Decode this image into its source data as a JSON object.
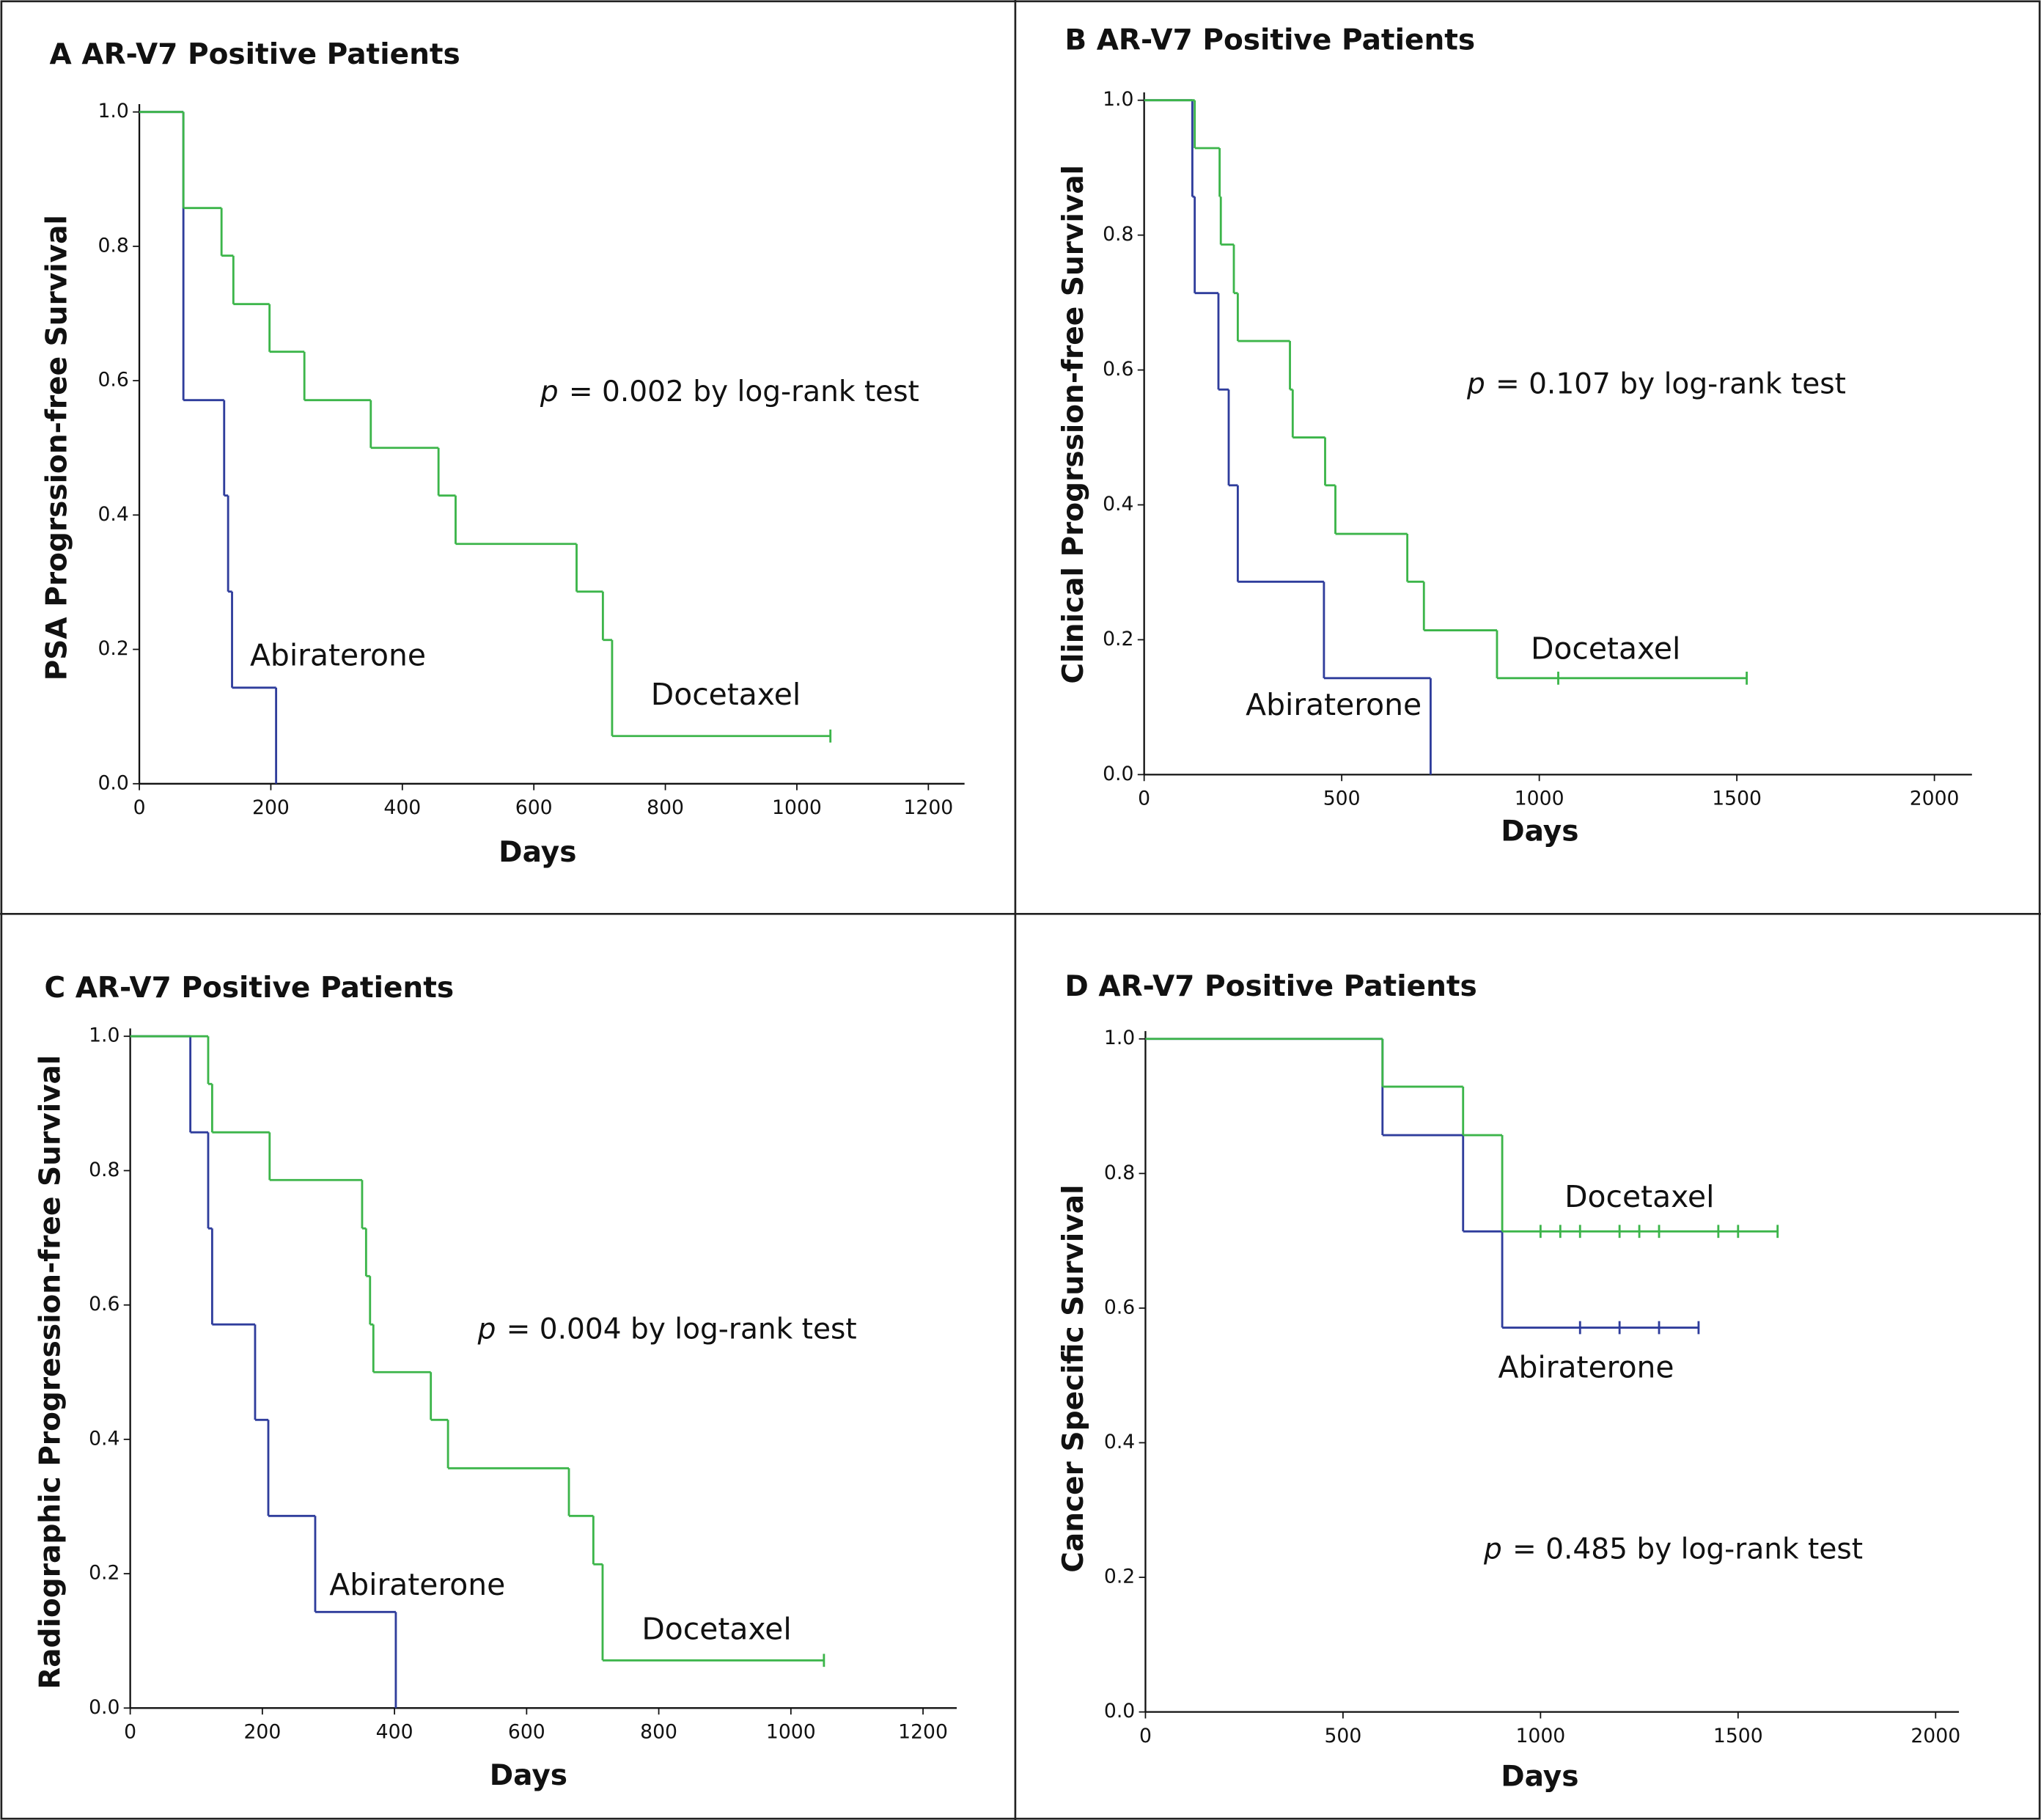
{
  "chart_data": [
    {
      "type": "line",
      "step": true,
      "title": "A AR-V7 Positive Patients",
      "xlabel": "Days",
      "ylabel": "PSA Progrssion-free Survival",
      "annotation": {
        "symbol": "p",
        "text": "= 0.002 by log-rank test"
      },
      "xlim": [
        0,
        1255
      ],
      "ylim": [
        0,
        1
      ],
      "xticks": [
        0,
        200,
        400,
        600,
        800,
        1000,
        1200
      ],
      "yticks": [
        {
          "value": 0,
          "label": "0.0"
        },
        0.2,
        0.4,
        0.6,
        0.8,
        {
          "value": 1,
          "label": "1.0"
        }
      ],
      "series": [
        {
          "name": "Abiraterone",
          "color": "#2f3d9c",
          "x": [
            0,
            67,
            129,
            135,
            141,
            208
          ],
          "values": [
            1,
            0.571,
            0.429,
            0.286,
            0.143,
            0
          ]
        },
        {
          "name": "Docetaxel",
          "color": "#3cb54a",
          "x": [
            0,
            67,
            125,
            143,
            198,
            251,
            352,
            455,
            481,
            665,
            705,
            719,
            1051
          ],
          "values": [
            1,
            0.857,
            0.786,
            0.714,
            0.643,
            0.571,
            0.5,
            0.429,
            0.357,
            0.286,
            0.214,
            0.071,
            0.071
          ],
          "censored_x": [
            1051
          ]
        }
      ]
    },
    {
      "type": "line",
      "step": true,
      "title": "B AR-V7 Positive Patients",
      "xlabel": "Days",
      "ylabel": "Clinical Progrssion-free Survival",
      "annotation": {
        "symbol": "p",
        "text": "= 0.107 by log-rank test"
      },
      "xlim": [
        0,
        2095
      ],
      "ylim": [
        0,
        1
      ],
      "xticks": [
        0,
        500,
        1000,
        1500,
        2000
      ],
      "yticks": [
        {
          "value": 0,
          "label": "0.0"
        },
        0.2,
        0.4,
        0.6,
        0.8,
        {
          "value": 1,
          "label": "1.0"
        }
      ],
      "series": [
        {
          "name": "Abiraterone",
          "color": "#2f3d9c",
          "x": [
            0,
            122,
            128,
            188,
            214,
            237,
            455,
            725
          ],
          "values": [
            1,
            0.857,
            0.714,
            0.571,
            0.429,
            0.286,
            0.143,
            0
          ]
        },
        {
          "name": "Docetaxel",
          "color": "#3cb54a",
          "x": [
            0,
            128,
            191,
            194,
            227,
            237,
            369,
            376,
            458,
            484,
            666,
            708,
            893,
            1525
          ],
          "values": [
            1,
            0.929,
            0.857,
            0.786,
            0.714,
            0.643,
            0.571,
            0.5,
            0.429,
            0.357,
            0.286,
            0.214,
            0.143,
            0.143
          ],
          "censored_x": [
            1048,
            1525
          ]
        }
      ]
    },
    {
      "type": "line",
      "step": true,
      "title": "C AR-V7 Positive Patients",
      "xlabel": "Days",
      "ylabel": "Radiographic Progression-free Survival",
      "annotation": {
        "symbol": "p",
        "text": "= 0.004 by log-rank test"
      },
      "xlim": [
        0,
        1251
      ],
      "ylim": [
        0,
        1
      ],
      "xticks": [
        0,
        200,
        400,
        600,
        800,
        1000,
        1200
      ],
      "yticks": [
        {
          "value": 0,
          "label": "0.0"
        },
        0.2,
        0.4,
        0.6,
        0.8,
        {
          "value": 1,
          "label": "1.0"
        }
      ],
      "series": [
        {
          "name": "Abiraterone",
          "color": "#2f3d9c",
          "x": [
            0,
            91,
            118,
            124,
            189,
            209,
            280,
            402
          ],
          "values": [
            1,
            0.857,
            0.714,
            0.571,
            0.429,
            0.286,
            0.143,
            0
          ]
        },
        {
          "name": "Docetaxel",
          "color": "#3cb54a",
          "x": [
            0,
            118,
            124,
            211,
            351,
            357,
            363,
            368,
            455,
            481,
            664,
            701,
            715,
            1050
          ],
          "values": [
            1,
            0.929,
            0.857,
            0.786,
            0.714,
            0.643,
            0.571,
            0.5,
            0.429,
            0.357,
            0.286,
            0.214,
            0.071,
            0.071
          ],
          "censored_x": [
            1050
          ]
        }
      ]
    },
    {
      "type": "line",
      "step": true,
      "title": "D AR-V7 Positive Patients",
      "xlabel": "Days",
      "ylabel": "Cancer Specific Survival",
      "annotation": {
        "symbol": "p",
        "text": "= 0.485 by log-rank test"
      },
      "xlim": [
        0,
        2059
      ],
      "ylim": [
        0,
        1
      ],
      "xticks": [
        0,
        500,
        1000,
        1500,
        2000
      ],
      "yticks": [
        {
          "value": 0,
          "label": "0.0"
        },
        0.2,
        0.4,
        0.6,
        0.8,
        {
          "value": 1,
          "label": "1.0"
        }
      ],
      "series": [
        {
          "name": "Abiraterone",
          "color": "#2f3d9c",
          "x": [
            0,
            600,
            804,
            903,
            1400
          ],
          "values": [
            1,
            0.857,
            0.714,
            0.571,
            0.571
          ],
          "censored_x": [
            1100,
            1200,
            1300,
            1400
          ]
        },
        {
          "name": "Docetaxel",
          "color": "#3cb54a",
          "x": [
            0,
            600,
            804,
            903,
            1600
          ],
          "values": [
            1,
            0.929,
            0.857,
            0.714,
            0.714
          ],
          "censored_x": [
            1000,
            1050,
            1100,
            1200,
            1250,
            1300,
            1450,
            1500,
            1600
          ]
        }
      ]
    }
  ]
}
